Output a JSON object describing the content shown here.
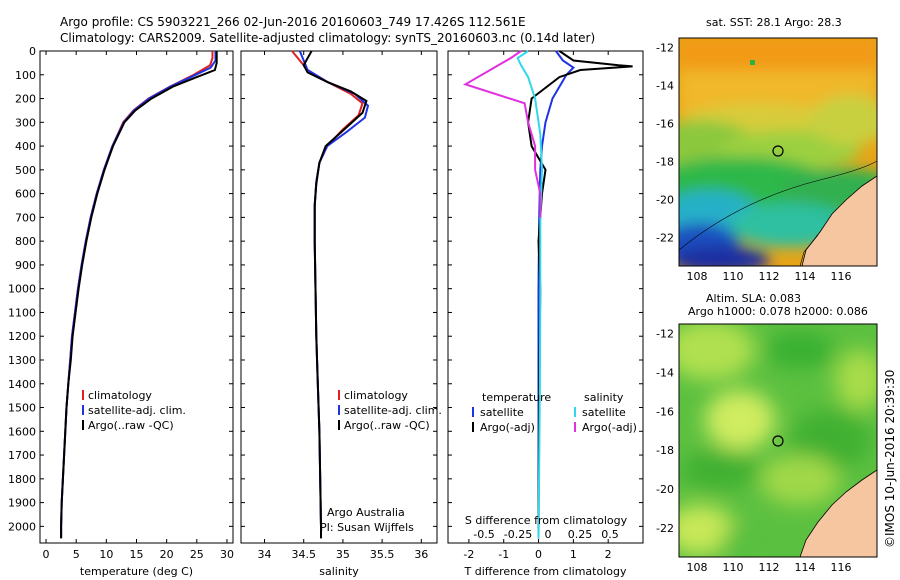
{
  "header": {
    "line1": "Argo profile: CS 5903221_266 02-Jun-2016 20160603_749 17.426S 112.561E",
    "line2": "Climatology: CARS2009. Satellite-adjusted climatology: synTS_20160603.nc (0.14d later)"
  },
  "credit": "©IMOS 10-Jun-2016 20:39:30",
  "colors": {
    "climatology": "#e02020",
    "satellite": "#1e32e6",
    "argo": "#000000",
    "satellite_salinity": "#30d8e8",
    "argo_salinity_adj": "#e030e0",
    "land": "#f5c6a0"
  },
  "chart_data": [
    {
      "type": "line",
      "name": "temperature-profile",
      "xlabel": "temperature (deg C)",
      "ylabel": "",
      "xlim": [
        -1,
        31
      ],
      "ylim": [
        2070,
        0
      ],
      "x_ticks": [
        0,
        5,
        10,
        15,
        20,
        25,
        30
      ],
      "y_ticks": [
        0,
        100,
        200,
        300,
        400,
        500,
        600,
        700,
        800,
        900,
        1000,
        1100,
        1200,
        1300,
        1400,
        1500,
        1600,
        1700,
        1800,
        1900,
        2000
      ],
      "legend": [
        "climatology",
        "satellite-adj. clim.",
        "Argo(..raw -QC)"
      ],
      "series": [
        {
          "name": "climatology",
          "color": "#e02020",
          "points": [
            [
              27.6,
              0
            ],
            [
              27.6,
              30
            ],
            [
              27.2,
              60
            ],
            [
              24.5,
              100
            ],
            [
              20.5,
              150
            ],
            [
              17,
              200
            ],
            [
              14.5,
              250
            ],
            [
              12.8,
              300
            ],
            [
              11,
              400
            ],
            [
              9.6,
              500
            ],
            [
              8.4,
              600
            ],
            [
              7.4,
              700
            ],
            [
              6.6,
              800
            ],
            [
              5.9,
              900
            ],
            [
              5.3,
              1000
            ],
            [
              4.8,
              1100
            ],
            [
              4.3,
              1200
            ],
            [
              4,
              1300
            ],
            [
              3.7,
              1400
            ],
            [
              3.4,
              1500
            ],
            [
              3.2,
              1600
            ],
            [
              3,
              1700
            ],
            [
              2.8,
              1800
            ],
            [
              2.6,
              1900
            ],
            [
              2.5,
              2000
            ],
            [
              2.5,
              2050
            ]
          ]
        },
        {
          "name": "satellite-adj. clim.",
          "color": "#1e32e6",
          "points": [
            [
              28.1,
              0
            ],
            [
              28.1,
              40
            ],
            [
              27.3,
              70
            ],
            [
              24.8,
              100
            ],
            [
              20.6,
              150
            ],
            [
              17.1,
              200
            ],
            [
              14.6,
              250
            ],
            [
              12.9,
              300
            ],
            [
              11,
              400
            ],
            [
              9.6,
              500
            ],
            [
              8.4,
              600
            ],
            [
              7.4,
              700
            ],
            [
              6.6,
              800
            ],
            [
              5.9,
              900
            ],
            [
              5.3,
              1000
            ],
            [
              4.8,
              1100
            ],
            [
              4.3,
              1200
            ],
            [
              4,
              1300
            ],
            [
              3.7,
              1400
            ],
            [
              3.4,
              1500
            ],
            [
              3.2,
              1600
            ],
            [
              3,
              1700
            ],
            [
              2.8,
              1800
            ],
            [
              2.6,
              1900
            ],
            [
              2.5,
              2000
            ],
            [
              2.5,
              2050
            ]
          ]
        },
        {
          "name": "Argo(..raw -QC)",
          "color": "#000000",
          "points": [
            [
              28.3,
              0
            ],
            [
              28.3,
              50
            ],
            [
              28,
              80
            ],
            [
              25,
              110
            ],
            [
              21,
              150
            ],
            [
              17.5,
              200
            ],
            [
              14.8,
              250
            ],
            [
              13,
              300
            ],
            [
              11.1,
              400
            ],
            [
              9.7,
              500
            ],
            [
              8.5,
              600
            ],
            [
              7.5,
              700
            ],
            [
              6.7,
              800
            ],
            [
              6,
              900
            ],
            [
              5.4,
              1000
            ],
            [
              4.9,
              1100
            ],
            [
              4.4,
              1200
            ],
            [
              4.1,
              1300
            ],
            [
              3.7,
              1400
            ],
            [
              3.4,
              1500
            ],
            [
              3.2,
              1600
            ],
            [
              3,
              1700
            ],
            [
              2.8,
              1800
            ],
            [
              2.6,
              1900
            ],
            [
              2.5,
              2000
            ],
            [
              2.5,
              2050
            ]
          ]
        }
      ]
    },
    {
      "type": "line",
      "name": "salinity-profile",
      "xlabel": "salinity",
      "ylabel": "",
      "xlim": [
        33.7,
        36.2
      ],
      "ylim": [
        2070,
        0
      ],
      "x_ticks": [
        34,
        34.5,
        35,
        35.5,
        36
      ],
      "legend": [
        "climatology",
        "satellite-adj. clim.",
        "Argo(..raw -QC)"
      ],
      "annotation": [
        "Argo Australia",
        "PI: Susan Wijffels"
      ],
      "series": [
        {
          "name": "climatology",
          "color": "#e02020",
          "points": [
            [
              34.35,
              0
            ],
            [
              34.45,
              40
            ],
            [
              34.55,
              80
            ],
            [
              34.8,
              130
            ],
            [
              35.1,
              180
            ],
            [
              35.25,
              220
            ],
            [
              35.2,
              270
            ],
            [
              35.0,
              330
            ],
            [
              34.8,
              400
            ],
            [
              34.7,
              470
            ],
            [
              34.66,
              550
            ],
            [
              34.64,
              650
            ],
            [
              34.64,
              800
            ],
            [
              34.65,
              1000
            ],
            [
              34.66,
              1200
            ],
            [
              34.68,
              1400
            ],
            [
              34.7,
              1600
            ],
            [
              34.71,
              1800
            ],
            [
              34.72,
              2000
            ],
            [
              34.72,
              2050
            ]
          ]
        },
        {
          "name": "satellite-adj. clim.",
          "color": "#1e32e6",
          "points": [
            [
              34.45,
              0
            ],
            [
              34.5,
              40
            ],
            [
              34.55,
              80
            ],
            [
              34.8,
              130
            ],
            [
              35.15,
              180
            ],
            [
              35.32,
              230
            ],
            [
              35.28,
              280
            ],
            [
              35.05,
              340
            ],
            [
              34.8,
              400
            ],
            [
              34.7,
              470
            ],
            [
              34.66,
              550
            ],
            [
              34.64,
              650
            ],
            [
              34.64,
              800
            ],
            [
              34.65,
              1000
            ],
            [
              34.66,
              1200
            ],
            [
              34.68,
              1400
            ],
            [
              34.7,
              1600
            ],
            [
              34.71,
              1800
            ],
            [
              34.72,
              2000
            ],
            [
              34.72,
              2050
            ]
          ]
        },
        {
          "name": "Argo(..raw -QC)",
          "color": "#000000",
          "points": [
            [
              34.6,
              0
            ],
            [
              34.55,
              30
            ],
            [
              34.5,
              60
            ],
            [
              34.55,
              90
            ],
            [
              34.8,
              130
            ],
            [
              35.1,
              170
            ],
            [
              35.3,
              210
            ],
            [
              35.25,
              260
            ],
            [
              35.05,
              320
            ],
            [
              34.78,
              400
            ],
            [
              34.7,
              470
            ],
            [
              34.66,
              560
            ],
            [
              34.64,
              650
            ],
            [
              34.64,
              800
            ],
            [
              34.65,
              1000
            ],
            [
              34.66,
              1200
            ],
            [
              34.68,
              1400
            ],
            [
              34.7,
              1600
            ],
            [
              34.71,
              1800
            ],
            [
              34.72,
              2000
            ],
            [
              34.72,
              2050
            ]
          ]
        }
      ]
    },
    {
      "type": "line",
      "name": "difference-profile",
      "xlabel": "T difference from climatology",
      "x2label": "S difference from climatology",
      "ylabel": "",
      "xlim": [
        -2.6,
        3.0
      ],
      "ylim": [
        2070,
        0
      ],
      "x_ticks": [
        -2,
        -1,
        0,
        1,
        2
      ],
      "x2_ticks": [
        "-0.5",
        "-0.25",
        "0",
        "0.25",
        "0.5"
      ],
      "legend_temperature": {
        "title": "temperature",
        "items": [
          "satellite",
          "Argo(-adj)"
        ]
      },
      "legend_salinity": {
        "title": "salinity",
        "items": [
          "satellite",
          "Argo(-adj)"
        ]
      },
      "series": [
        {
          "name": "T satellite",
          "color": "#1e32e6",
          "points": [
            [
              0.5,
              0
            ],
            [
              0.7,
              40
            ],
            [
              1.0,
              70
            ],
            [
              0.8,
              100
            ],
            [
              0.6,
              150
            ],
            [
              0.4,
              200
            ],
            [
              0.3,
              250
            ],
            [
              0.2,
              300
            ],
            [
              0.1,
              400
            ],
            [
              0.05,
              500
            ],
            [
              0.02,
              700
            ],
            [
              0,
              1000
            ],
            [
              0,
              2050
            ]
          ]
        },
        {
          "name": "T Argo(-adj)",
          "color": "#000000",
          "points": [
            [
              0.6,
              0
            ],
            [
              1.0,
              40
            ],
            [
              2.3,
              60
            ],
            [
              2.7,
              65
            ],
            [
              1.2,
              80
            ],
            [
              0.6,
              110
            ],
            [
              -0.2,
              200
            ],
            [
              -0.3,
              300
            ],
            [
              -0.2,
              400
            ],
            [
              0.2,
              500
            ],
            [
              0.1,
              600
            ],
            [
              0,
              800
            ],
            [
              0.05,
              1000
            ],
            [
              0.02,
              1400
            ],
            [
              0,
              2050
            ]
          ]
        },
        {
          "name": "S satellite",
          "color": "#30d8e8",
          "points": [
            [
              -0.3,
              0
            ],
            [
              -0.6,
              30
            ],
            [
              -0.5,
              60
            ],
            [
              -0.3,
              110
            ],
            [
              -0.1,
              200
            ],
            [
              0.05,
              350
            ],
            [
              0.1,
              500
            ],
            [
              0.05,
              700
            ],
            [
              0.05,
              1000
            ],
            [
              0.04,
              1400
            ],
            [
              0,
              2050
            ]
          ]
        },
        {
          "name": "S Argo(-adj)",
          "color": "#e030e0",
          "points": [
            [
              -0.5,
              0
            ],
            [
              -0.8,
              30
            ],
            [
              -2.1,
              140
            ],
            [
              -0.4,
              220
            ],
            [
              -0.3,
              300
            ],
            [
              -0.1,
              400
            ],
            [
              -0.1,
              500
            ],
            [
              0.05,
              600
            ],
            [
              0.05,
              700
            ]
          ]
        }
      ]
    },
    {
      "type": "heatmap",
      "name": "sst-map",
      "title": "sat. SST: 28.1  Argo: 28.3",
      "xlim": [
        107,
        118
      ],
      "ylim": [
        -23.5,
        -11.5
      ],
      "x_ticks": [
        108,
        110,
        112,
        114,
        116
      ],
      "y_ticks": [
        -12,
        -14,
        -16,
        -18,
        -20,
        -22
      ],
      "float_position": [
        112.561,
        -17.426
      ]
    },
    {
      "type": "heatmap",
      "name": "sla-map",
      "title": [
        "Altim. SLA: 0.083",
        "Argo h1000: 0.078 h2000: 0.086"
      ],
      "xlim": [
        107,
        118
      ],
      "ylim": [
        -23.5,
        -11.5
      ],
      "x_ticks": [
        108,
        110,
        112,
        114,
        116
      ],
      "y_ticks": [
        -12,
        -14,
        -16,
        -18,
        -20,
        -22
      ],
      "float_position": [
        112.561,
        -17.426
      ]
    }
  ]
}
